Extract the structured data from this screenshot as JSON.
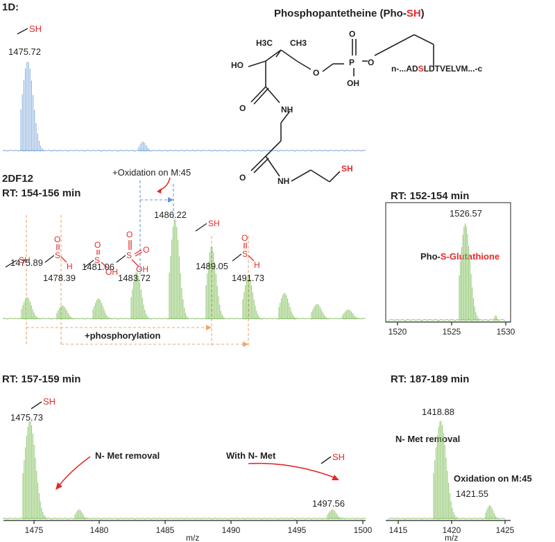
{
  "colors": {
    "blue_trace": "#7aa6d8",
    "green_trace": "#8cc46a",
    "red": "#e32b2b",
    "orange_guide": "#f0a46a",
    "blue_guide": "#6b8fd1",
    "black": "#222222"
  },
  "panel_1d": {
    "label": "1D:",
    "sh_label": "SH",
    "peak_label": "1475.72"
  },
  "structure": {
    "title_main": "Phosphopantetheine (Pho-",
    "title_red": "SH",
    "title_end": ")",
    "atoms": {
      "h3c": "H3C",
      "ch3": "CH3",
      "ho": "HO",
      "o_ester": "O",
      "p": "P",
      "o_top": "O",
      "o_link": "O",
      "oh": "OH",
      "o_amide1": "O",
      "nh1": "NH",
      "o_amide2": "O",
      "nh2": "NH",
      "sh": "SH"
    },
    "peptide_pre": "n-...AD",
    "peptide_s": "S",
    "peptide_post": "LDTVELVM...-c"
  },
  "panel_2df12": {
    "sample": "2DF12",
    "rt": "RT: 154-156 min",
    "oxidation_annotation": "+Oxidation on M:45",
    "phosphorylation_annotation": "+phosphorylation",
    "peaks": [
      {
        "label": "1475.89"
      },
      {
        "label": "1478.39"
      },
      {
        "label": "1481.06"
      },
      {
        "label": "1483.72"
      },
      {
        "label": "1486.22"
      },
      {
        "label": "1489.05"
      },
      {
        "label": "1491.73"
      }
    ],
    "chem": {
      "sh": "SH",
      "s": "S",
      "o": "O",
      "h": "H",
      "oh": "OH"
    }
  },
  "panel_rt152": {
    "rt": "RT: 152-154 min",
    "peak_label": "1526.57",
    "name_pre": "Pho-",
    "name_red": "S-Glutathione",
    "xticks": [
      "1520",
      "1525",
      "1530"
    ]
  },
  "panel_rt157": {
    "rt": "RT: 157-159 min",
    "sh_label": "SH",
    "peak1_label": "1475.73",
    "peak2_label": "1497.56",
    "annotation_left": "N- Met removal",
    "annotation_right": "With N- Met",
    "sh_label2": "SH",
    "xlabel": "m/z",
    "xticks": [
      "1475",
      "1480",
      "1485",
      "1490",
      "1495",
      "1500"
    ]
  },
  "panel_rt187": {
    "rt": "RT: 187-189 min",
    "peak1_label": "1418.88",
    "annotation1": "N- Met removal",
    "annotation2": "Oxidation on M:45",
    "peak2_label": "1421.55",
    "xlabel": "m/z",
    "xticks": [
      "1415",
      "1420",
      "1425"
    ]
  },
  "chart_data": [
    {
      "type": "line",
      "name": "1D",
      "peaks": [
        {
          "x": 1475.72
        }
      ]
    },
    {
      "type": "line",
      "name": "2DF12 RT 154-156",
      "peaks": [
        {
          "x": 1475.89
        },
        {
          "x": 1478.39
        },
        {
          "x": 1481.06
        },
        {
          "x": 1483.72
        },
        {
          "x": 1486.22
        },
        {
          "x": 1489.05
        },
        {
          "x": 1491.73
        }
      ]
    },
    {
      "type": "line",
      "name": "RT 152-154",
      "xlim": [
        1519,
        1531
      ],
      "peaks": [
        {
          "x": 1526.57
        }
      ]
    },
    {
      "type": "line",
      "name": "RT 157-159",
      "xlabel": "m/z",
      "xlim": [
        1473,
        1500
      ],
      "peaks": [
        {
          "x": 1475.73
        },
        {
          "x": 1497.56
        }
      ]
    },
    {
      "type": "line",
      "name": "RT 187-189",
      "xlabel": "m/z",
      "xlim": [
        1414,
        1425
      ],
      "peaks": [
        {
          "x": 1418.88
        },
        {
          "x": 1421.55
        }
      ]
    }
  ]
}
